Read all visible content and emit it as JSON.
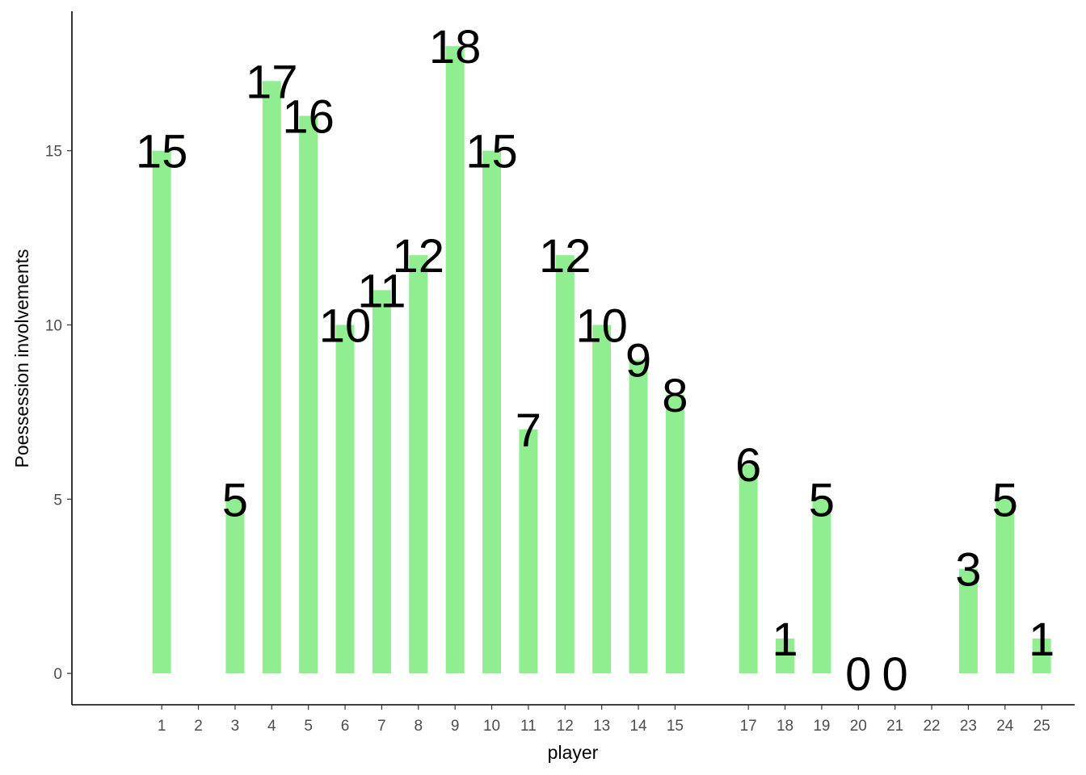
{
  "chart_data": {
    "type": "bar",
    "xlabel": "player",
    "ylabel": "Poessession involvements",
    "x_ticks": [
      "1",
      "2",
      "3",
      "4",
      "5",
      "6",
      "7",
      "8",
      "9",
      "10",
      "11",
      "12",
      "13",
      "14",
      "15",
      "17",
      "18",
      "19",
      "20",
      "21",
      "22",
      "23",
      "24",
      "25"
    ],
    "categories": [
      "1",
      "3",
      "4",
      "5",
      "6",
      "7",
      "8",
      "9",
      "10",
      "11",
      "12",
      "13",
      "14",
      "15",
      "17",
      "18",
      "19",
      "20",
      "21",
      "23",
      "24",
      "25"
    ],
    "values": [
      15,
      5,
      17,
      16,
      10,
      11,
      12,
      18,
      15,
      7,
      12,
      10,
      9,
      8,
      6,
      1,
      5,
      0,
      0,
      3,
      5,
      1
    ],
    "y_ticks": [
      "0",
      "5",
      "10",
      "15"
    ],
    "ylim": [
      -0.9,
      19
    ],
    "x_range": [
      -1.45,
      25.9
    ],
    "bar_color": "#90EE90",
    "grid": false
  }
}
